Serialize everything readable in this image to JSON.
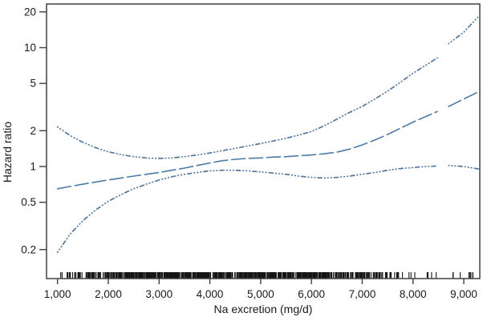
{
  "figure": {
    "background": "#ffffff",
    "frame_color": "#404040",
    "text_color": "#1a1a1a"
  },
  "chart_data": {
    "type": "line",
    "title": "",
    "xlabel": "Na excretion (mg/d)",
    "ylabel": "Hazard ratio",
    "x_axis": {
      "scale": "linear",
      "range": [
        784,
        9315
      ],
      "ticks": [
        1000,
        2000,
        3000,
        4000,
        5000,
        6000,
        7000,
        8000,
        9000
      ],
      "tick_labels": [
        "1,000",
        "2,000",
        "3,000",
        "4,000",
        "5,000",
        "6,000",
        "7,000",
        "8,000",
        "9,000"
      ]
    },
    "y_axis": {
      "scale": "log",
      "range": [
        0.114,
        23.3
      ],
      "ticks": [
        20,
        10,
        5,
        2,
        1,
        0.5,
        0.2
      ],
      "tick_labels": [
        "20",
        "10",
        "5",
        "2",
        "1",
        "0.5",
        "0.2"
      ]
    },
    "grid": false,
    "legend": "none",
    "line_color": "#4a7aa5",
    "ci_color": "#54789c",
    "series": [
      {
        "name": "hazard-ratio-estimate",
        "style": "longdash",
        "segments": [
          [
            [
              1000,
              0.65
            ],
            [
              1250,
              0.68
            ],
            [
              1500,
              0.71
            ],
            [
              1750,
              0.74
            ],
            [
              2000,
              0.77
            ],
            [
              2250,
              0.8
            ],
            [
              2500,
              0.83
            ],
            [
              2750,
              0.86
            ],
            [
              3000,
              0.89
            ],
            [
              3250,
              0.93
            ],
            [
              3500,
              0.97
            ],
            [
              3750,
              1.02
            ],
            [
              4000,
              1.07
            ],
            [
              4250,
              1.12
            ],
            [
              4500,
              1.15
            ],
            [
              4750,
              1.17
            ],
            [
              5000,
              1.18
            ],
            [
              5250,
              1.2
            ],
            [
              5500,
              1.21
            ],
            [
              5750,
              1.23
            ],
            [
              6000,
              1.25
            ],
            [
              6250,
              1.28
            ],
            [
              6500,
              1.32
            ],
            [
              6750,
              1.4
            ],
            [
              7000,
              1.52
            ],
            [
              7250,
              1.67
            ],
            [
              7500,
              1.86
            ],
            [
              7750,
              2.1
            ],
            [
              8000,
              2.36
            ],
            [
              8250,
              2.63
            ],
            [
              8477,
              2.9
            ]
          ],
          [
            [
              8700,
              3.2
            ],
            [
              9000,
              3.7
            ],
            [
              9315,
              4.3
            ]
          ]
        ]
      },
      {
        "name": "upper-95ci",
        "style": "dotted",
        "segments": [
          [
            [
              1000,
              2.15
            ],
            [
              1250,
              1.82
            ],
            [
              1500,
              1.6
            ],
            [
              1750,
              1.44
            ],
            [
              2000,
              1.33
            ],
            [
              2250,
              1.26
            ],
            [
              2500,
              1.21
            ],
            [
              2750,
              1.18
            ],
            [
              3000,
              1.17
            ],
            [
              3250,
              1.18
            ],
            [
              3500,
              1.21
            ],
            [
              3750,
              1.25
            ],
            [
              4000,
              1.3
            ],
            [
              4250,
              1.36
            ],
            [
              4500,
              1.42
            ],
            [
              4750,
              1.49
            ],
            [
              5000,
              1.56
            ],
            [
              5250,
              1.64
            ],
            [
              5500,
              1.73
            ],
            [
              5750,
              1.84
            ],
            [
              6000,
              1.97
            ],
            [
              6250,
              2.2
            ],
            [
              6500,
              2.5
            ],
            [
              6750,
              2.85
            ],
            [
              7000,
              3.2
            ],
            [
              7250,
              3.7
            ],
            [
              7500,
              4.3
            ],
            [
              7750,
              5.1
            ],
            [
              8000,
              6.1
            ],
            [
              8250,
              7.1
            ],
            [
              8477,
              8.2
            ]
          ],
          [
            [
              8700,
              10.8
            ],
            [
              9000,
              13.5
            ],
            [
              9315,
              18.8
            ]
          ]
        ]
      },
      {
        "name": "lower-95ci",
        "style": "dotted",
        "segments": [
          [
            [
              1000,
              0.19
            ],
            [
              1250,
              0.27
            ],
            [
              1500,
              0.35
            ],
            [
              1750,
              0.43
            ],
            [
              2000,
              0.51
            ],
            [
              2250,
              0.58
            ],
            [
              2500,
              0.65
            ],
            [
              2750,
              0.71
            ],
            [
              3000,
              0.77
            ],
            [
              3250,
              0.82
            ],
            [
              3500,
              0.86
            ],
            [
              3750,
              0.89
            ],
            [
              4000,
              0.92
            ],
            [
              4250,
              0.93
            ],
            [
              4500,
              0.93
            ],
            [
              4750,
              0.92
            ],
            [
              5000,
              0.9
            ],
            [
              5250,
              0.88
            ],
            [
              5500,
              0.86
            ],
            [
              5750,
              0.83
            ],
            [
              6000,
              0.81
            ],
            [
              6250,
              0.8
            ],
            [
              6500,
              0.81
            ],
            [
              6750,
              0.83
            ],
            [
              7000,
              0.86
            ],
            [
              7250,
              0.89
            ],
            [
              7500,
              0.93
            ],
            [
              7750,
              0.96
            ],
            [
              8000,
              0.98
            ],
            [
              8250,
              1.0
            ],
            [
              8477,
              1.01
            ]
          ],
          [
            [
              8700,
              1.02
            ],
            [
              9000,
              1.0
            ],
            [
              9315,
              0.95
            ]
          ]
        ]
      }
    ],
    "rug": {
      "color": "#151515",
      "seed": 42,
      "segments": [
        {
          "from": 1050,
          "to": 1320,
          "count": 9
        },
        {
          "from": 1320,
          "to": 1680,
          "count": 20
        },
        {
          "from": 1680,
          "to": 2200,
          "count": 45
        },
        {
          "from": 2200,
          "to": 2620,
          "count": 55
        },
        {
          "from": 2620,
          "to": 6420,
          "count": 520
        },
        {
          "from": 6420,
          "to": 7050,
          "count": 60
        },
        {
          "from": 7050,
          "to": 7620,
          "count": 32
        },
        {
          "from": 7620,
          "to": 8460,
          "count": 14
        },
        {
          "from": 8700,
          "to": 9280,
          "count": 8
        }
      ]
    }
  }
}
